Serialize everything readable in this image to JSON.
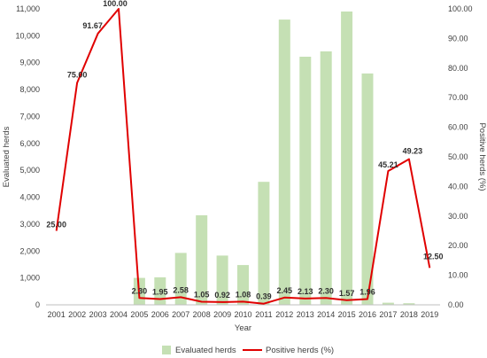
{
  "chart_data": {
    "type": "bar",
    "x": [
      "2001",
      "2002",
      "2003",
      "2004",
      "2005",
      "2006",
      "2007",
      "2008",
      "2009",
      "2010",
      "2011",
      "2012",
      "2013",
      "2014",
      "2015",
      "2016",
      "2017",
      "2018",
      "2019"
    ],
    "series": [
      {
        "name": "Evaluated herds",
        "type": "bar",
        "axis": "left",
        "color": "#c5e0b4",
        "values": [
          0,
          0,
          0,
          0,
          1000,
          1020,
          1930,
          3330,
          1830,
          1480,
          4570,
          10600,
          9220,
          9420,
          10900,
          8600,
          80,
          60,
          0
        ]
      },
      {
        "name": "Positive herds (%)",
        "type": "line",
        "axis": "right",
        "color": "#e00000",
        "values": [
          25.0,
          75.0,
          91.67,
          100.0,
          2.3,
          1.95,
          2.58,
          1.05,
          0.92,
          1.08,
          0.39,
          2.45,
          2.13,
          2.3,
          1.57,
          1.96,
          45.21,
          49.23,
          12.5
        ],
        "labels": [
          "25.00",
          "75.00",
          "91.67",
          "100.00",
          "2.30",
          "1.95",
          "2.58",
          "1.05",
          "0.92",
          "1.08",
          "0.39",
          "2.45",
          "2.13",
          "2.30",
          "1.57",
          "1.96",
          "45.21",
          "49.23",
          "12.50"
        ]
      }
    ],
    "xlabel": "Year",
    "ylabel": "Evaluated herds",
    "y2label": "Positive herds (%)",
    "ylim": [
      0,
      11000
    ],
    "yticks": [
      "0",
      "1,000",
      "2,000",
      "3,000",
      "4,000",
      "5,000",
      "6,000",
      "7,000",
      "8,000",
      "9,000",
      "10,000",
      "11,000"
    ],
    "y2lim": [
      0,
      100
    ],
    "y2ticks": [
      "0.00",
      "10.00",
      "20.00",
      "30.00",
      "40.00",
      "50.00",
      "60.00",
      "70.00",
      "80.00",
      "90.00",
      "100.00"
    ],
    "grid": false,
    "legend": "bottom"
  }
}
